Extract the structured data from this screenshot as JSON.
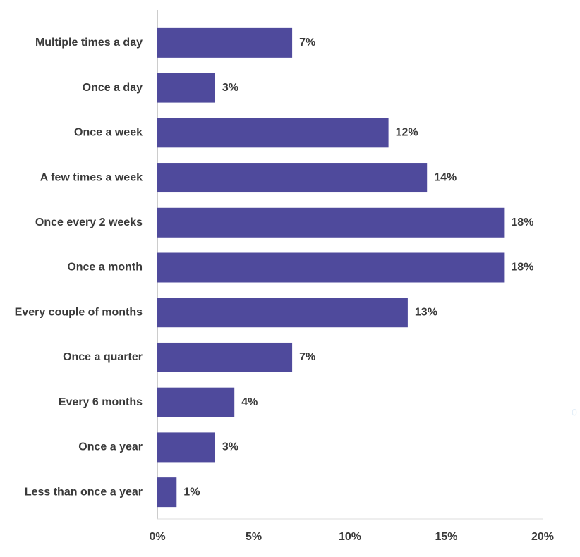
{
  "chart_data": {
    "type": "bar",
    "orientation": "horizontal",
    "categories": [
      "Multiple times a day",
      "Once a day",
      "Once a week",
      "A few times a week",
      "Once every 2 weeks",
      "Once a month",
      "Every couple of months",
      "Once a quarter",
      "Every 6 months",
      "Once a year",
      "Less than once a year"
    ],
    "values": [
      7,
      3,
      12,
      14,
      18,
      18,
      13,
      7,
      4,
      3,
      1
    ],
    "value_labels": [
      "7%",
      "3%",
      "12%",
      "14%",
      "18%",
      "18%",
      "13%",
      "7%",
      "4%",
      "3%",
      "1%"
    ],
    "color": "#4f4a9c",
    "xlim": [
      0,
      20
    ],
    "xticks": [
      {
        "value": 0,
        "label": "0%"
      },
      {
        "value": 5,
        "label": "5%"
      },
      {
        "value": 10,
        "label": "10%"
      },
      {
        "value": 15,
        "label": "15%"
      },
      {
        "value": 20,
        "label": "20%"
      }
    ],
    "grid": false,
    "annotation": "0"
  }
}
